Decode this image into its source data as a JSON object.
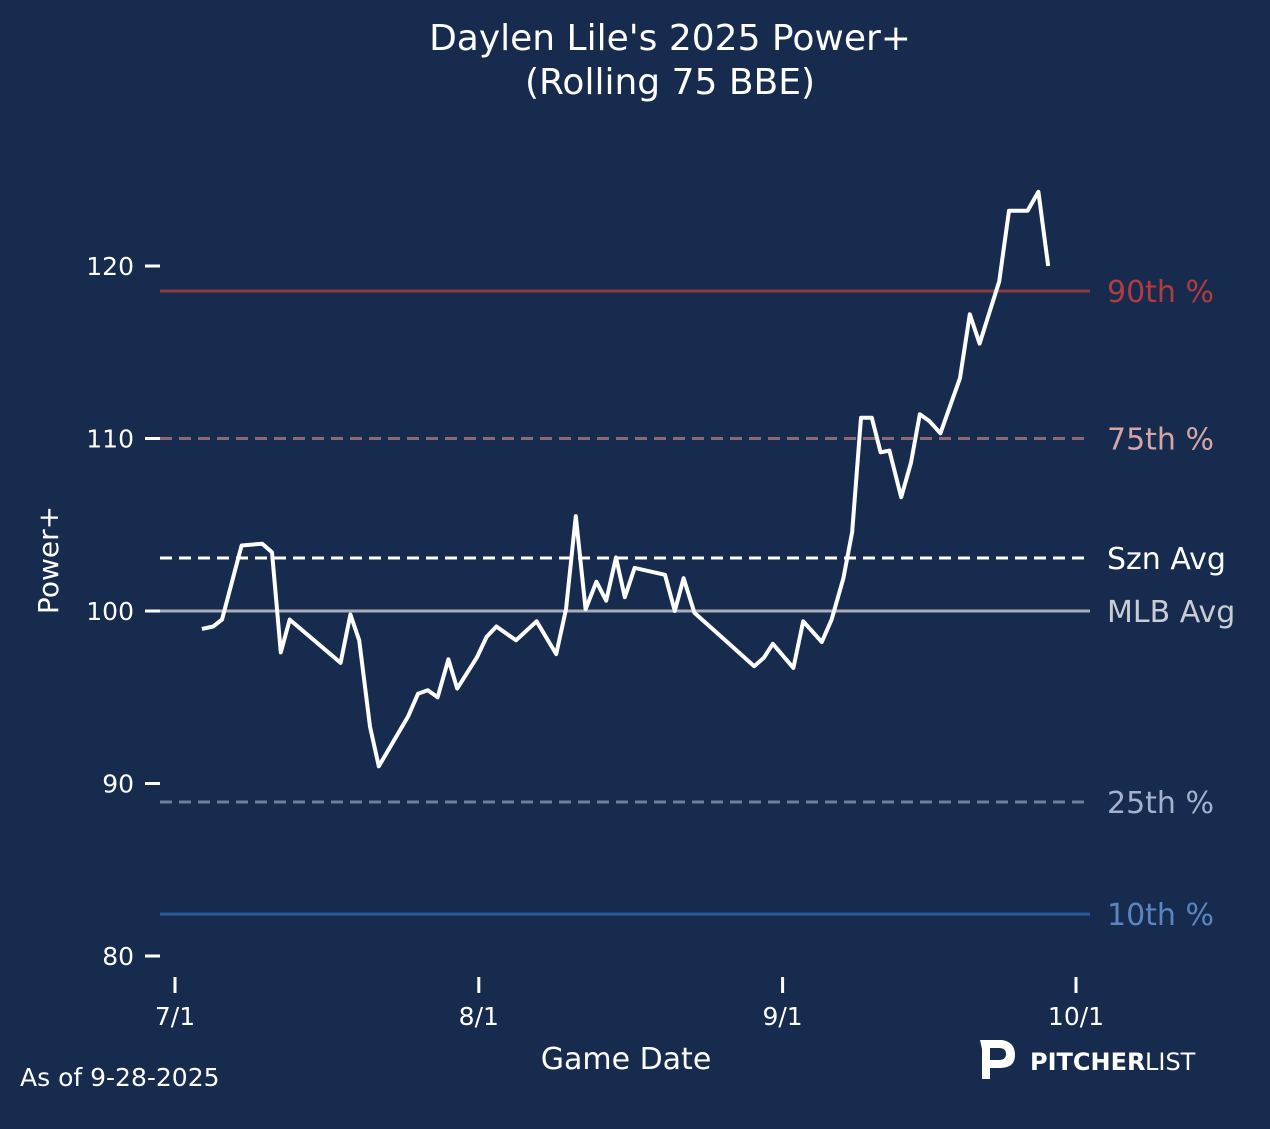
{
  "chart_data": {
    "type": "line",
    "title": "Daylen Lile's 2025 Power+",
    "subtitle": "(Rolling 75 BBE)",
    "xlabel": "Game Date",
    "ylabel": "Power+",
    "x_unit": "days since 7/1/2025",
    "xlim": [
      -0.5,
      92.5
    ],
    "ylim": [
      79,
      126
    ],
    "x_ticks": [
      {
        "value": 0,
        "label": "7/1"
      },
      {
        "value": 31,
        "label": "8/1"
      },
      {
        "value": 62,
        "label": "9/1"
      },
      {
        "value": 92,
        "label": "10/1"
      }
    ],
    "y_ticks": [
      {
        "value": 80,
        "label": "80"
      },
      {
        "value": 90,
        "label": "90"
      },
      {
        "value": 100,
        "label": "100"
      },
      {
        "value": 110,
        "label": "110"
      },
      {
        "value": 120,
        "label": "120"
      }
    ],
    "grid": false,
    "series": [
      {
        "name": "Power+",
        "color": "#ffffff",
        "x": [
          2.75,
          3.9,
          4.8,
          6.8,
          8.9,
          9.9,
          10.8,
          11.7,
          16.9,
          17.9,
          18.8,
          19.9,
          20.8,
          23.8,
          24.8,
          25.8,
          26.8,
          27.9,
          28.8,
          30.8,
          31.8,
          32.8,
          34.8,
          36.9,
          38.9,
          39.9,
          40.9,
          41.9,
          43.0,
          44.0,
          45.0,
          45.9,
          46.9,
          50.0,
          51.0,
          51.9,
          53.0,
          59.1,
          60.1,
          61.0,
          63.1,
          64.1,
          66.0,
          67.0,
          68.2,
          69.1,
          70.0,
          71.1,
          72.0,
          72.9,
          74.1,
          75.1,
          76.0,
          77.0,
          78.1,
          80.1,
          81.1,
          82.1,
          84.1,
          85.1,
          87.0,
          88.1,
          89.1
        ],
        "y": [
          98.96,
          99.1,
          99.5,
          103.8,
          103.9,
          103.4,
          97.6,
          99.5,
          97.0,
          99.8,
          98.3,
          93.3,
          91.0,
          93.9,
          95.2,
          95.4,
          95.0,
          97.2,
          95.5,
          97.3,
          98.5,
          99.1,
          98.3,
          99.4,
          97.5,
          100.1,
          105.5,
          100.1,
          101.7,
          100.6,
          103.1,
          100.8,
          102.5,
          102.1,
          100.0,
          101.9,
          99.9,
          96.8,
          97.3,
          98.1,
          96.7,
          99.4,
          98.2,
          99.5,
          101.9,
          104.6,
          111.2,
          111.2,
          109.2,
          109.3,
          106.6,
          108.6,
          111.4,
          111.0,
          110.3,
          113.5,
          117.2,
          115.5,
          119.1,
          123.2,
          123.2,
          124.3,
          120.0
        ]
      }
    ],
    "reference_lines": [
      {
        "label": "90th %",
        "value": 118.55,
        "color": "#8b3a42",
        "label_color": "#b33a3f",
        "style": "solid"
      },
      {
        "label": "75th %",
        "value": 110.0,
        "color": "#8a6a78",
        "label_color": "#d4a6a6",
        "style": "dashed"
      },
      {
        "label": "Szn Avg",
        "value": 103.07,
        "color": "#ffffff",
        "label_color": "#ffffff",
        "style": "dashed"
      },
      {
        "label": "MLB Avg",
        "value": 100.0,
        "color": "#a8adb7",
        "label_color": "#c8ccd3",
        "style": "solid"
      },
      {
        "label": "25th %",
        "value": 88.93,
        "color": "#6f7f9a",
        "label_color": "#a3b2cc",
        "style": "dashed"
      },
      {
        "label": "10th %",
        "value": 82.43,
        "color": "#2d5a9a",
        "label_color": "#5a85c0",
        "style": "solid"
      }
    ]
  },
  "footer": {
    "as_of": "As of 9-28-2025"
  },
  "logo": {
    "bold": "PITCHER",
    "light": "LIST"
  },
  "colors": {
    "background": "#172b4f"
  }
}
